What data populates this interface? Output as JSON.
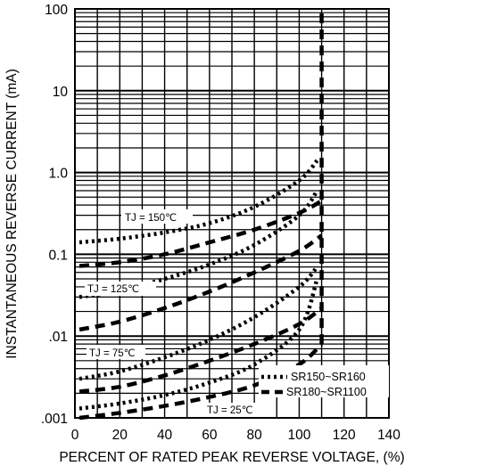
{
  "chart_data": {
    "type": "line",
    "title": "",
    "xlabel": "PERCENT OF RATED PEAK REVERSE VOLTAGE, (%)",
    "ylabel": "INSTANTANEOUS REVERSE CURRENT (mA)",
    "x_ticks": [
      "0",
      "20",
      "40",
      "60",
      "80",
      "100",
      "120",
      "140"
    ],
    "y_ticks": [
      ".001",
      ".01",
      "0.1",
      "1.0",
      "10",
      "100"
    ],
    "xlim": [
      0,
      140
    ],
    "ylim": [
      0.001,
      100
    ],
    "y_scale": "log",
    "grid": true,
    "legend": {
      "placement": "bottom-right",
      "entries": [
        {
          "label": "SR150~SR160",
          "style": "dotted"
        },
        {
          "label": "SR180~SR1100",
          "style": "dashed"
        }
      ]
    },
    "annotations": [
      "TJ = 150℃",
      "TJ = 125℃",
      "TJ = 75℃",
      "TJ = 25℃"
    ],
    "series": [
      {
        "style": "dotted",
        "temperature": "150",
        "x": [
          2,
          20,
          40,
          60,
          80,
          100,
          108
        ],
        "y": [
          0.14,
          0.155,
          0.185,
          0.24,
          0.38,
          0.8,
          1.4
        ]
      },
      {
        "style": "dashed",
        "temperature": "150",
        "x": [
          2,
          20,
          40,
          60,
          80,
          100,
          110
        ],
        "y": [
          0.072,
          0.08,
          0.1,
          0.14,
          0.2,
          0.32,
          0.45
        ]
      },
      {
        "style": "dotted",
        "temperature": "125",
        "x": [
          2,
          20,
          40,
          60,
          80,
          100,
          108
        ],
        "y": [
          0.03,
          0.036,
          0.05,
          0.075,
          0.13,
          0.3,
          0.6
        ]
      },
      {
        "style": "dashed",
        "temperature": "125",
        "x": [
          2,
          20,
          40,
          60,
          80,
          100,
          110
        ],
        "y": [
          0.012,
          0.015,
          0.022,
          0.035,
          0.06,
          0.11,
          0.17
        ]
      },
      {
        "style": "dotted",
        "temperature": "75",
        "x": [
          2,
          20,
          40,
          60,
          80,
          100,
          108
        ],
        "y": [
          0.003,
          0.0037,
          0.0055,
          0.009,
          0.017,
          0.04,
          0.07
        ]
      },
      {
        "style": "dashed",
        "temperature": "75",
        "x": [
          2,
          20,
          40,
          60,
          80,
          100,
          110
        ],
        "y": [
          0.0021,
          0.0024,
          0.0033,
          0.005,
          0.008,
          0.014,
          0.022
        ]
      },
      {
        "style": "dotted",
        "temperature": "25",
        "x": [
          2,
          20,
          40,
          60,
          80,
          100,
          108
        ],
        "y": [
          0.0013,
          0.0015,
          0.0019,
          0.0027,
          0.0045,
          0.012,
          0.05
        ]
      },
      {
        "style": "dashed",
        "temperature": "25",
        "x": [
          2,
          20,
          40,
          60,
          80,
          100,
          110
        ],
        "y": [
          0.001,
          0.00115,
          0.0014,
          0.0018,
          0.0025,
          0.0045,
          0.008
        ]
      }
    ],
    "breakdown": {
      "style": "dashed",
      "x": 110,
      "y_range": [
        0.008,
        100
      ]
    }
  }
}
